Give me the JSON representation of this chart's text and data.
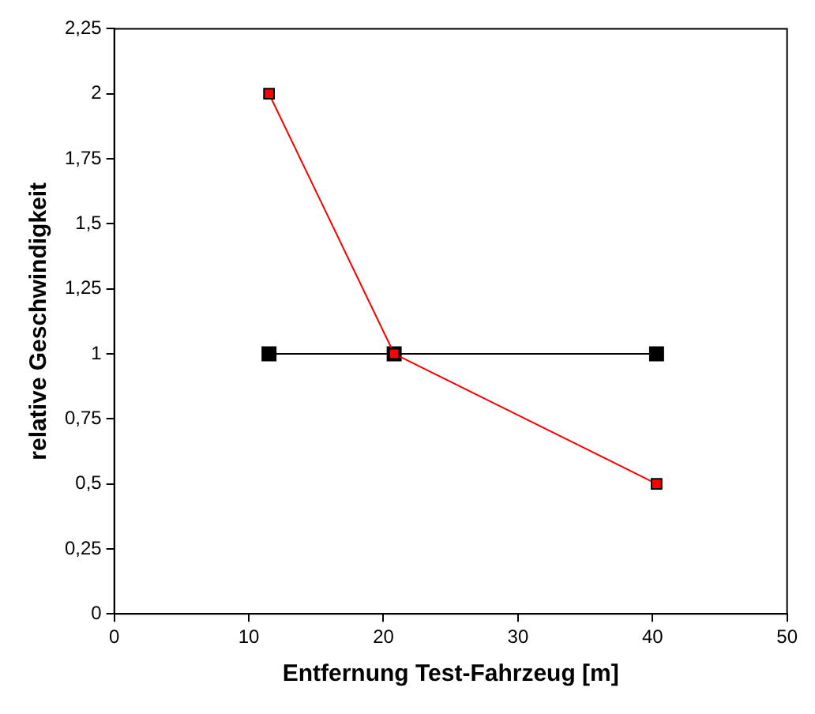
{
  "chart_data": {
    "type": "line",
    "xlabel": "Entfernung Test-Fahrzeug [m]",
    "ylabel": "relative Geschwindigkeit",
    "series": [
      {
        "color": "#000000",
        "x": [
          11.5,
          20.8,
          40.3
        ],
        "values": [
          1,
          1,
          1
        ]
      },
      {
        "color": "#ff0000",
        "x": [
          11.5,
          20.8,
          40.3
        ],
        "values": [
          2,
          1,
          0.5
        ]
      }
    ],
    "xlim": [
      0,
      50
    ],
    "xticks": [
      0,
      10,
      20,
      30,
      40,
      50
    ],
    "ylim": [
      0,
      2.25
    ],
    "yticks": [
      0,
      {
        "value": 0.25,
        "label": "0,25"
      },
      {
        "value": 0.5,
        "label": "0,5"
      },
      {
        "value": 0.75,
        "label": "0,75"
      },
      1,
      {
        "value": 1.25,
        "label": "1,25"
      },
      {
        "value": 1.5,
        "label": "1,5"
      },
      {
        "value": 1.75,
        "label": "1,75"
      },
      2,
      {
        "value": 2.25,
        "label": "2,25"
      }
    ],
    "grid": false,
    "legend": false,
    "marker": "square",
    "line_style": "solid"
  }
}
